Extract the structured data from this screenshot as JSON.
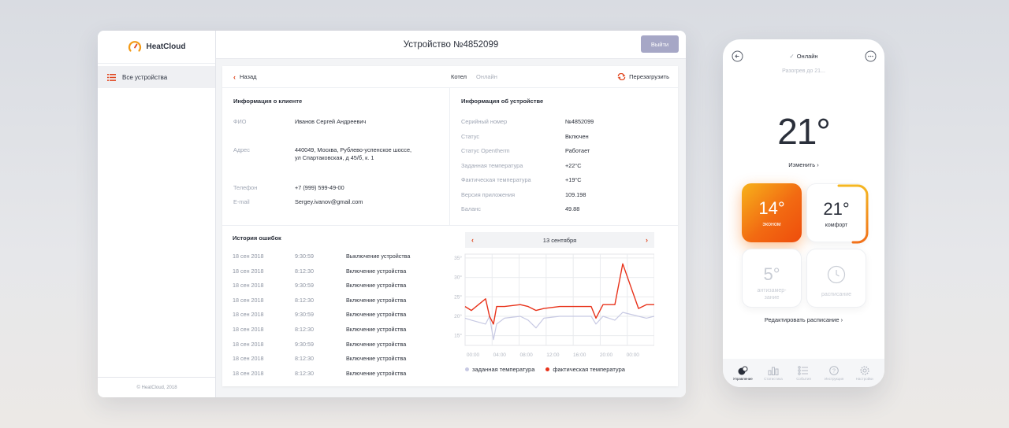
{
  "app": {
    "brand": "HeatCloud",
    "footer": "© HeatCloud, 2018",
    "sidebar": {
      "items": [
        {
          "label": "Все устройства"
        }
      ]
    },
    "header": {
      "title": "Устройство №4852099",
      "exit_label": "Выйти"
    }
  },
  "toolbar": {
    "back_label": "Назад",
    "device_type": "Котел",
    "device_status": "Онлайн",
    "reload_label": "Перезагрузить"
  },
  "client": {
    "title": "Информация о клиенте",
    "fields": [
      {
        "key": "ФИО",
        "value": "Иванов Сергей Андреевич"
      },
      {
        "key": "Адрес",
        "value": "440049, Москва, Рублево-успенское шоссе,",
        "value2": "ул Спартаковская, д 45/б, к. 1"
      },
      {
        "key": "Телефон",
        "value": "+7 (999) 599-49-00"
      },
      {
        "key": "E-mail",
        "value": "Sergey.ivanov@gmail.com"
      }
    ]
  },
  "device": {
    "title": "Информация об устройстве",
    "fields": [
      {
        "key": "Серийный номер",
        "value": "№4852099"
      },
      {
        "key": "Статус",
        "value": "Включен"
      },
      {
        "key": "Статус Opentherm",
        "value": "Работает"
      },
      {
        "key": "Заданная температура",
        "value": "+22°C"
      },
      {
        "key": "Фактическая температура",
        "value": "+19°C"
      },
      {
        "key": "Версия приложения",
        "value": "109.198"
      },
      {
        "key": "Баланс",
        "value": "49.88"
      }
    ]
  },
  "errors": {
    "title": "История ошибок",
    "rows": [
      {
        "date": "18 сен 2018",
        "time": "9:30:59",
        "message": "Выключение устройства"
      },
      {
        "date": "18 сен 2018",
        "time": "8:12:30",
        "message": "Включение устройства"
      },
      {
        "date": "18 сен 2018",
        "time": "9:30:59",
        "message": "Включение устройства"
      },
      {
        "date": "18 сен 2018",
        "time": "8:12:30",
        "message": "Включение устройства"
      },
      {
        "date": "18 сен 2018",
        "time": "9:30:59",
        "message": "Включение устройства"
      },
      {
        "date": "18 сен 2018",
        "time": "8:12:30",
        "message": "Включение устройства"
      },
      {
        "date": "18 сен 2018",
        "time": "9:30:59",
        "message": "Включение устройства"
      },
      {
        "date": "18 сен 2018",
        "time": "8:12:30",
        "message": "Включение устройства"
      },
      {
        "date": "18 сен 2018",
        "time": "8:12:30",
        "message": "Включение устройства"
      }
    ]
  },
  "chart_header": {
    "date": "13 сентября"
  },
  "chart_data": {
    "type": "line",
    "x_ticks": [
      "00:00",
      "04:00",
      "08:00",
      "12:00",
      "16:00",
      "20:00",
      "00:00"
    ],
    "y_ticks": [
      "35°",
      "30°",
      "25°",
      "20°",
      "15°"
    ],
    "ylim": [
      12.5,
      36
    ],
    "grid": true,
    "legend_position": "bottom",
    "x": [
      0,
      0.8,
      2.6,
      3.1,
      3.6,
      4.0,
      5.0,
      7.0,
      8.0,
      9.0,
      10.0,
      12.0,
      14.0,
      16.0,
      16.6,
      17.5,
      19.0,
      20.0,
      22.0,
      23.0,
      24.0
    ],
    "series": [
      {
        "name": "заданная температура",
        "color": "#c7c9e3",
        "y": [
          19.5,
          19,
          18,
          20,
          14,
          18,
          19.5,
          20,
          19,
          17,
          19.5,
          20,
          20,
          20,
          18,
          20,
          19,
          21,
          20,
          19.5,
          20
        ]
      },
      {
        "name": "фактическая температура",
        "color": "#e8321a",
        "y": [
          22.5,
          21.5,
          24.5,
          20,
          18,
          22.5,
          22.5,
          23,
          22.5,
          21.5,
          22,
          22.5,
          22.5,
          22.5,
          19.5,
          23,
          23,
          33.5,
          22,
          23,
          23
        ]
      }
    ]
  },
  "phone": {
    "status": "Онлайн",
    "subtitle": "Разогрев до 21...",
    "current_temp": "21°",
    "change_label": "Изменить",
    "modes": [
      {
        "temp": "14°",
        "label": "эконом"
      },
      {
        "temp": "21°",
        "label": "комфорт"
      },
      {
        "temp": "5°",
        "label": "антизамер-",
        "label2": "зание"
      },
      {
        "label": "расписание"
      }
    ],
    "edit_schedule": "Редактировать расписание",
    "tabs": [
      "Управление",
      "Статистика",
      "События",
      "Инструкция",
      "Настройки"
    ],
    "accent": "#f26a12"
  }
}
